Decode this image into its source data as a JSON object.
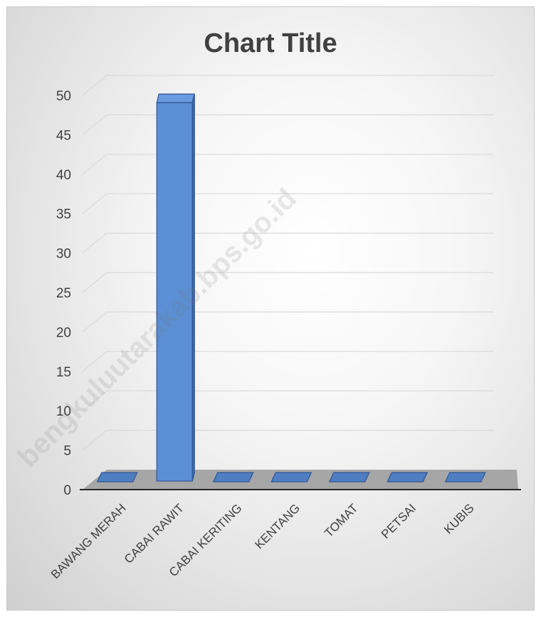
{
  "chart_data": {
    "type": "bar",
    "title": "Chart Title",
    "categories": [
      "BAWANG MERAH",
      "CABAI RAWIT",
      "CABAI KERITING",
      "KENTANG",
      "TOMAT",
      "PETSAI",
      "KUBIS"
    ],
    "values": [
      0,
      48,
      0,
      0,
      0,
      0,
      0
    ],
    "ylim": [
      0,
      50
    ],
    "yticks": [
      0,
      5,
      10,
      15,
      20,
      25,
      30,
      35,
      40,
      45,
      50
    ],
    "grid": true,
    "style": "3d-column",
    "colors": {
      "bar": "#5b8fd5",
      "bar_edge": "#2f5597",
      "floor": "#a6a6a6",
      "grid": "#d9d9d9"
    },
    "watermark": "bengkuluutarakab.bps.go.id"
  }
}
